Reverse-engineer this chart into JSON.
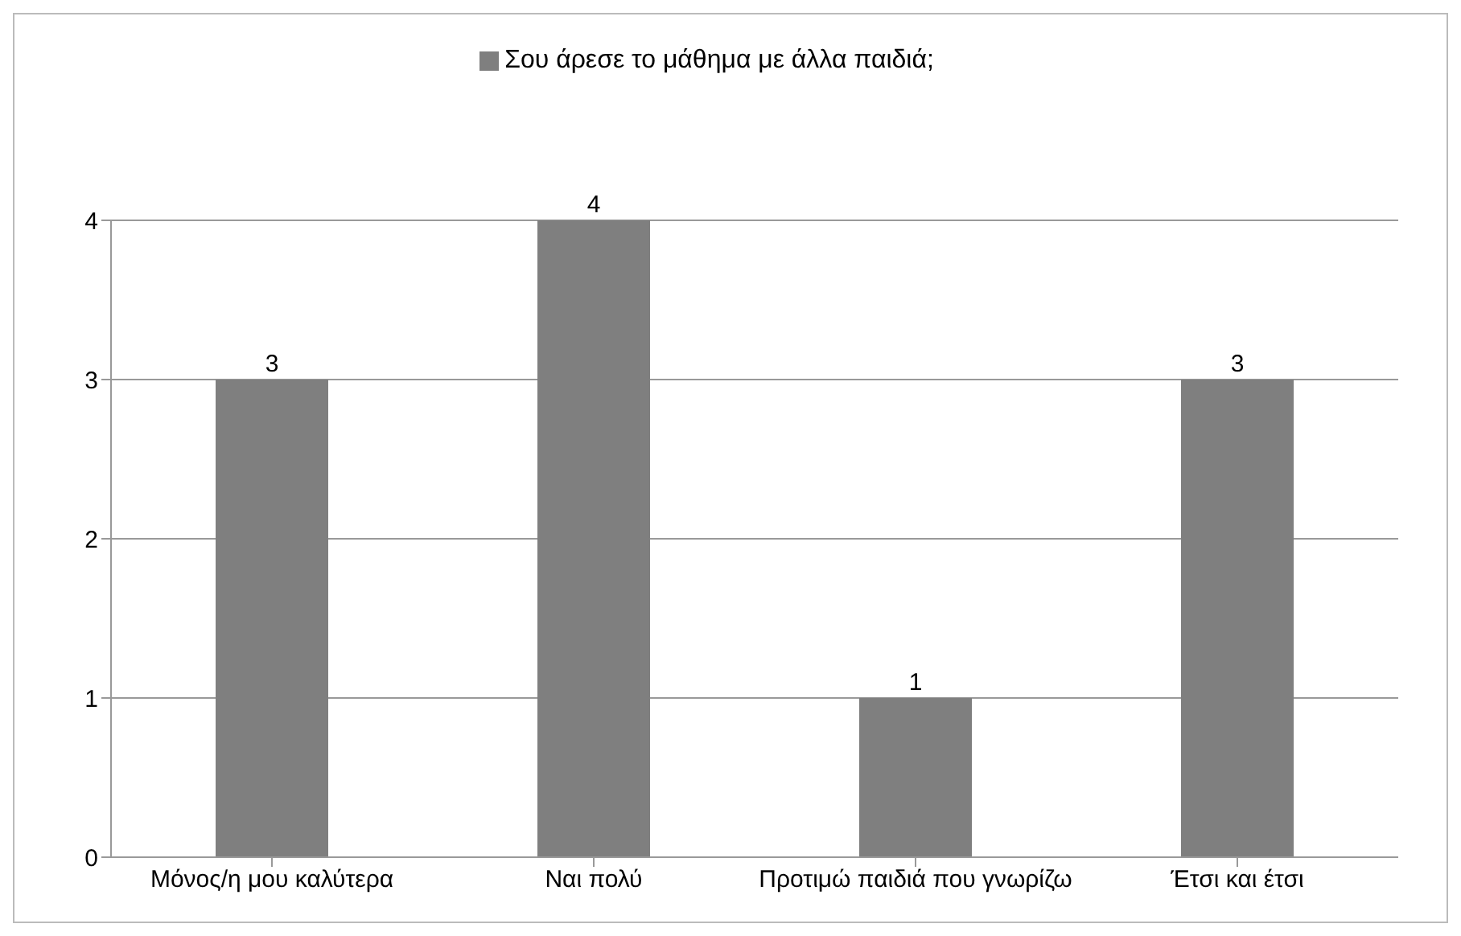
{
  "chart_data": {
    "type": "bar",
    "categories": [
      "Μόνος/η μου καλύτερα",
      "Ναι πολύ",
      "Προτιμώ παιδιά που γνωρίζω",
      "Έτσι και έτσι"
    ],
    "series": [
      {
        "name": "Σου άρεσε το μάθημα με άλλα παιδιά;",
        "color": "#7f7f7f",
        "values": [
          3,
          4,
          1,
          3
        ]
      }
    ],
    "ylim": [
      0,
      4
    ],
    "yticks": [
      0,
      1,
      2,
      3,
      4
    ],
    "grid": "y",
    "legend": "top",
    "data_labels": true
  }
}
